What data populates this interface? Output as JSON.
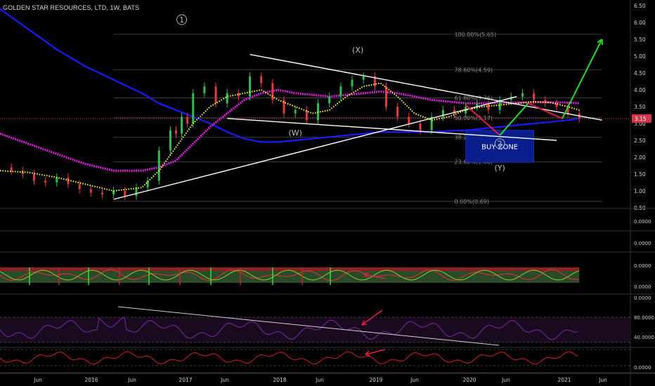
{
  "header": {
    "title": "GOLDEN STAR RESOURCES, LTD, 1W, BATS"
  },
  "colors": {
    "background": "#000000",
    "price_up": "#2fbf4f",
    "price_down": "#e33b3b",
    "ma_fast": "#ffff33",
    "ma_mid": "#e020e0",
    "ma_slow": "#1a1aff",
    "trendline": "#ffffff",
    "fib": "#555555",
    "projection_down": "#e02040",
    "projection_up": "#22dd22",
    "buy_zone": "#0a1e8c",
    "arrow": "#e02040",
    "last_price_tag": "#d6364b"
  },
  "chart_data": {
    "type": "line",
    "price_axis": {
      "ticks": [
        "6.50",
        "6.00",
        "5.50",
        "5.00",
        "4.50",
        "4.00",
        "3.50",
        "3.00",
        "2.50",
        "2.00",
        "1.50",
        "1.00",
        "0.50"
      ],
      "ylim": [
        0.5,
        6.5
      ],
      "last_price": "3.15"
    },
    "time_axis": {
      "ticks": [
        "Jun",
        "2016",
        "Jun",
        "2017",
        "Jun",
        "2018",
        "Jun",
        "2019",
        "Jun",
        "2020",
        "Jun",
        "2021",
        "Jun"
      ]
    },
    "price_series": {
      "name": "Price",
      "x": [
        0,
        4,
        8,
        12,
        16,
        20,
        24,
        28,
        32,
        36,
        40,
        44,
        48,
        52,
        56,
        60,
        62,
        64,
        66,
        68,
        72,
        76,
        80,
        84,
        88,
        92,
        96,
        100,
        104,
        108,
        112,
        116,
        120,
        124,
        128,
        132,
        136,
        140,
        144,
        148,
        152,
        156,
        160,
        164,
        168,
        172,
        176,
        180,
        184,
        188,
        192,
        196,
        200,
        204
      ],
      "values": [
        1.7,
        1.6,
        1.5,
        1.3,
        1.25,
        1.4,
        1.2,
        1.05,
        0.95,
        0.9,
        1.0,
        0.85,
        1.1,
        1.3,
        2.2,
        2.8,
        2.7,
        3.2,
        3.0,
        3.9,
        4.1,
        3.6,
        3.9,
        3.8,
        4.4,
        4.2,
        3.7,
        3.3,
        3.4,
        3.1,
        3.6,
        3.8,
        4.1,
        4.3,
        4.4,
        4.1,
        3.5,
        3.2,
        3.0,
        2.8,
        3.2,
        3.4,
        3.3,
        3.5,
        3.6,
        3.4,
        3.7,
        3.8,
        3.9,
        3.7,
        3.6,
        3.5,
        3.3,
        3.15
      ]
    },
    "ma_fast": {
      "name": "MA fast",
      "x": [
        0,
        10,
        20,
        30,
        40,
        50,
        56,
        62,
        68,
        74,
        80,
        86,
        92,
        98,
        104,
        110,
        116,
        122,
        128,
        134,
        140,
        146,
        152,
        158,
        164,
        170,
        176,
        182,
        188,
        194,
        200,
        204
      ],
      "values": [
        1.6,
        1.55,
        1.4,
        1.2,
        1.0,
        1.1,
        1.6,
        2.3,
        3.0,
        3.5,
        3.8,
        3.9,
        4.0,
        3.7,
        3.5,
        3.3,
        3.4,
        3.8,
        4.1,
        4.2,
        3.8,
        3.3,
        3.1,
        3.2,
        3.4,
        3.5,
        3.55,
        3.6,
        3.65,
        3.62,
        3.5,
        3.4
      ]
    },
    "ma_mid": {
      "name": "MA mid",
      "x": [
        0,
        10,
        20,
        30,
        40,
        50,
        56,
        62,
        68,
        74,
        80,
        86,
        92,
        98,
        104,
        110,
        116,
        122,
        128,
        134,
        140,
        146,
        152,
        158,
        164,
        170,
        176,
        182,
        188,
        194,
        200,
        204
      ],
      "values": [
        2.7,
        2.4,
        2.1,
        1.8,
        1.6,
        1.6,
        1.7,
        1.9,
        2.4,
        2.9,
        3.3,
        3.7,
        3.9,
        4.0,
        3.9,
        3.85,
        3.8,
        3.85,
        3.9,
        3.95,
        3.9,
        3.8,
        3.7,
        3.65,
        3.6,
        3.6,
        3.62,
        3.62,
        3.63,
        3.63,
        3.62,
        3.6
      ]
    },
    "ma_slow": {
      "name": "MA slow",
      "x": [
        0,
        10,
        20,
        30,
        40,
        50,
        56,
        62,
        68,
        74,
        80,
        86,
        92,
        98,
        104,
        110,
        116,
        122,
        128,
        134,
        140,
        146,
        152,
        158,
        164,
        170,
        176,
        182,
        188,
        194,
        200,
        204
      ],
      "values": [
        6.4,
        5.8,
        5.2,
        4.7,
        4.3,
        3.9,
        3.6,
        3.4,
        3.2,
        3.0,
        2.75,
        2.55,
        2.45,
        2.45,
        2.5,
        2.55,
        2.6,
        2.65,
        2.7,
        2.75,
        2.75,
        2.75,
        2.75,
        2.78,
        2.8,
        2.85,
        2.9,
        2.95,
        3.0,
        3.05,
        3.1,
        3.15
      ]
    },
    "fib_levels": [
      {
        "label": "100.00%(5.65)",
        "value": 5.65
      },
      {
        "label": "78.60%(4.59)",
        "value": 4.59
      },
      {
        "label": "61.80%(3.76)",
        "value": 3.76
      },
      {
        "label": "50.00%(3.17)",
        "value": 3.17
      },
      {
        "label": "38.20%(2.59)",
        "value": 2.59
      },
      {
        "label": "23.60%(1.86)",
        "value": 1.86
      },
      {
        "label": "0.00%(0.69)",
        "value": 0.69
      }
    ],
    "wave_labels": [
      {
        "text": "1",
        "circled": true,
        "x": 64,
        "y": 6.0
      },
      {
        "text": "(X)",
        "x": 126,
        "y": 5.1
      },
      {
        "text": "(W)",
        "x": 104,
        "y": 2.65
      },
      {
        "text": "2",
        "circled": true,
        "x": 176,
        "y": 2.32
      },
      {
        "text": "(Y)",
        "x": 176,
        "y": 1.6
      }
    ],
    "trendlines": [
      {
        "x1": 88,
        "y1": 5.05,
        "x2": 212,
        "y2": 3.1
      },
      {
        "x1": 80,
        "y1": 3.15,
        "x2": 196,
        "y2": 2.5
      },
      {
        "x1": 40,
        "y1": 0.75,
        "x2": 182,
        "y2": 3.8
      }
    ],
    "projection": [
      {
        "x": 164,
        "y": 3.55,
        "color": "down"
      },
      {
        "x": 176,
        "y": 2.65,
        "color": "down"
      },
      {
        "x": 186,
        "y": 3.6,
        "color": "up"
      },
      {
        "x": 198,
        "y": 3.15,
        "color": "down"
      },
      {
        "x": 212,
        "y": 5.5,
        "color": "up"
      }
    ],
    "buy_zone": {
      "label": "BUY ZONE",
      "x1": 164,
      "x2": 188,
      "y1": 1.85,
      "y2": 2.8
    },
    "panes": [
      {
        "name": "pane1",
        "value_label": "0.0000"
      },
      {
        "name": "pane2",
        "value_label": "0.0000"
      },
      {
        "name": "stoch",
        "upper_label": "0.0000",
        "lower_label": "0.0000"
      },
      {
        "name": "rsi",
        "labels": [
          "0.0000",
          "80.0000",
          "40.0000"
        ]
      },
      {
        "name": "osc",
        "label": "0.0000"
      }
    ]
  }
}
